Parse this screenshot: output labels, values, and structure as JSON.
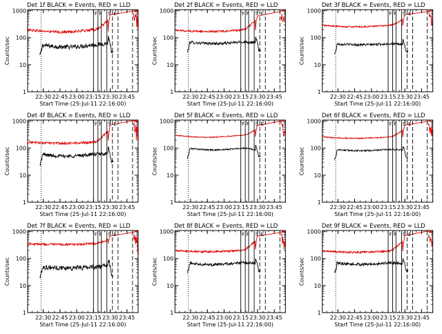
{
  "window": {
    "background": "#ffffff"
  },
  "colors": {
    "events": "#000000",
    "lld": "#e00000",
    "frame": "#000000"
  },
  "layout_grid": {
    "rows": 3,
    "cols": 3
  },
  "shared": {
    "ylabel": "Counts/sec",
    "xlabel": "Start Time (25-Jul-11 22:16:00)",
    "x_ticks": [
      "22:30",
      "22:45",
      "23:00",
      "23:15",
      "23:30",
      "23:45"
    ],
    "y_ticks": [
      "1",
      "10",
      "100",
      "1000"
    ],
    "marker_labels": [
      "F",
      "F",
      "S",
      "E"
    ]
  },
  "chart_data": [
    {
      "type": "line",
      "title": "Det 1f BLACK = Events, RED = LLD",
      "xlabel": "Start Time (25-Jul-11 22:16:00)",
      "ylabel": "Counts/sec",
      "yscale": "log",
      "ylim": [
        1,
        1100
      ],
      "x_range": [
        "22:16",
        "23:55"
      ],
      "series": [
        {
          "name": "Events",
          "color": "#000000",
          "start": "22:27",
          "level": 55,
          "mid_dip": 45,
          "end_peak": 120,
          "noise": 0.18
        },
        {
          "name": "LLD",
          "color": "#e00000",
          "start": "22:16",
          "level": 200,
          "mid_dip": 160,
          "end_peak": 1000,
          "noise": 0.12
        }
      ]
    },
    {
      "type": "line",
      "title": "Det 2f BLACK = Events, RED = LLD",
      "xlabel": "Start Time (25-Jul-11 22:16:00)",
      "ylabel": "Counts/sec",
      "yscale": "log",
      "ylim": [
        1,
        1100
      ],
      "x_range": [
        "22:16",
        "23:55"
      ],
      "series": [
        {
          "name": "Events",
          "color": "#000000",
          "start": "22:27",
          "level": 70,
          "mid_dip": 60,
          "end_peak": 110,
          "noise": 0.12
        },
        {
          "name": "LLD",
          "color": "#e00000",
          "start": "22:16",
          "level": 190,
          "mid_dip": 170,
          "end_peak": 1000,
          "noise": 0.08
        }
      ]
    },
    {
      "type": "line",
      "title": "Det 3f BLACK = Events, RED = LLD",
      "xlabel": "Start Time (25-Jul-11 22:16:00)",
      "ylabel": "Counts/sec",
      "yscale": "log",
      "ylim": [
        1,
        1100
      ],
      "x_range": [
        "22:16",
        "23:55"
      ],
      "series": [
        {
          "name": "Events",
          "color": "#000000",
          "start": "22:27",
          "level": 60,
          "mid_dip": 55,
          "end_peak": 90,
          "noise": 0.1
        },
        {
          "name": "LLD",
          "color": "#e00000",
          "start": "22:16",
          "level": 290,
          "mid_dip": 250,
          "end_peak": 1000,
          "noise": 0.06
        }
      ]
    },
    {
      "type": "line",
      "title": "Det 4f BLACK = Events, RED = LLD",
      "xlabel": "Start Time (25-Jul-11 22:16:00)",
      "ylabel": "Counts/sec",
      "yscale": "log",
      "ylim": [
        1,
        1100
      ],
      "x_range": [
        "22:16",
        "23:55"
      ],
      "series": [
        {
          "name": "Events",
          "color": "#000000",
          "start": "22:27",
          "level": 60,
          "mid_dip": 50,
          "end_peak": 110,
          "noise": 0.15
        },
        {
          "name": "LLD",
          "color": "#e00000",
          "start": "22:16",
          "level": 170,
          "mid_dip": 150,
          "end_peak": 1000,
          "noise": 0.1
        }
      ]
    },
    {
      "type": "line",
      "title": "Det 5f BLACK = Events, RED = LLD",
      "xlabel": "Start Time (25-Jul-11 22:16:00)",
      "ylabel": "Counts/sec",
      "yscale": "log",
      "ylim": [
        1,
        1100
      ],
      "x_range": [
        "22:16",
        "23:55"
      ],
      "series": [
        {
          "name": "Events",
          "color": "#000000",
          "start": "22:27",
          "level": 100,
          "mid_dip": 85,
          "end_peak": 130,
          "noise": 0.06
        },
        {
          "name": "LLD",
          "color": "#e00000",
          "start": "22:16",
          "level": 300,
          "mid_dip": 250,
          "end_peak": 1000,
          "noise": 0.04
        }
      ]
    },
    {
      "type": "line",
      "title": "Det 6f BLACK = Events, RED = LLD",
      "xlabel": "Start Time (25-Jul-11 22:16:00)",
      "ylabel": "Counts/sec",
      "yscale": "log",
      "ylim": [
        1,
        1100
      ],
      "x_range": [
        "22:16",
        "23:55"
      ],
      "series": [
        {
          "name": "Events",
          "color": "#000000",
          "start": "22:27",
          "level": 90,
          "mid_dip": 80,
          "end_peak": 130,
          "noise": 0.07
        },
        {
          "name": "LLD",
          "color": "#e00000",
          "start": "22:16",
          "level": 260,
          "mid_dip": 230,
          "end_peak": 1000,
          "noise": 0.05
        }
      ]
    },
    {
      "type": "line",
      "title": "Det 7f BLACK = Events, RED = LLD",
      "xlabel": "Start Time (25-Jul-11 22:16:00)",
      "ylabel": "Counts/sec",
      "yscale": "log",
      "ylim": [
        1,
        1100
      ],
      "x_range": [
        "22:16",
        "23:55"
      ],
      "series": [
        {
          "name": "Events",
          "color": "#000000",
          "start": "22:27",
          "level": 50,
          "mid_dip": 45,
          "end_peak": 100,
          "noise": 0.2
        },
        {
          "name": "LLD",
          "color": "#e00000",
          "start": "22:16",
          "level": 360,
          "mid_dip": 330,
          "end_peak": 1000,
          "noise": 0.09
        }
      ]
    },
    {
      "type": "line",
      "title": "Det 8f BLACK = Events, RED = LLD",
      "xlabel": "Start Time (25-Jul-11 22:16:00)",
      "ylabel": "Counts/sec",
      "yscale": "log",
      "ylim": [
        1,
        1100
      ],
      "x_range": [
        "22:16",
        "23:55"
      ],
      "series": [
        {
          "name": "Events",
          "color": "#000000",
          "start": "22:27",
          "level": 70,
          "mid_dip": 60,
          "end_peak": 110,
          "noise": 0.12
        },
        {
          "name": "LLD",
          "color": "#e00000",
          "start": "22:16",
          "level": 200,
          "mid_dip": 180,
          "end_peak": 1000,
          "noise": 0.08
        }
      ]
    },
    {
      "type": "line",
      "title": "Det 9f BLACK = Events, RED = LLD",
      "xlabel": "Start Time (25-Jul-11 22:16:00)",
      "ylabel": "Counts/sec",
      "yscale": "log",
      "ylim": [
        1,
        1100
      ],
      "x_range": [
        "22:16",
        "23:55"
      ],
      "series": [
        {
          "name": "Events",
          "color": "#000000",
          "start": "22:27",
          "level": 70,
          "mid_dip": 60,
          "end_peak": 110,
          "noise": 0.12
        },
        {
          "name": "LLD",
          "color": "#e00000",
          "start": "22:16",
          "level": 190,
          "mid_dip": 170,
          "end_peak": 1000,
          "noise": 0.08
        }
      ]
    }
  ],
  "markers": [
    {
      "label": "",
      "time": "22:28",
      "style": "dotted"
    },
    {
      "label": "F",
      "time": "23:15",
      "style": "solid"
    },
    {
      "label": "F",
      "time": "23:19",
      "style": "solid"
    },
    {
      "label": "",
      "time": "23:22",
      "style": "solid"
    },
    {
      "label": "S",
      "time": "23:27",
      "style": "solid"
    },
    {
      "label": "E",
      "time": "23:32",
      "style": "dashed"
    },
    {
      "label": "",
      "time": "23:37",
      "style": "dashed"
    },
    {
      "label": "",
      "time": "23:50",
      "style": "dashed"
    }
  ]
}
